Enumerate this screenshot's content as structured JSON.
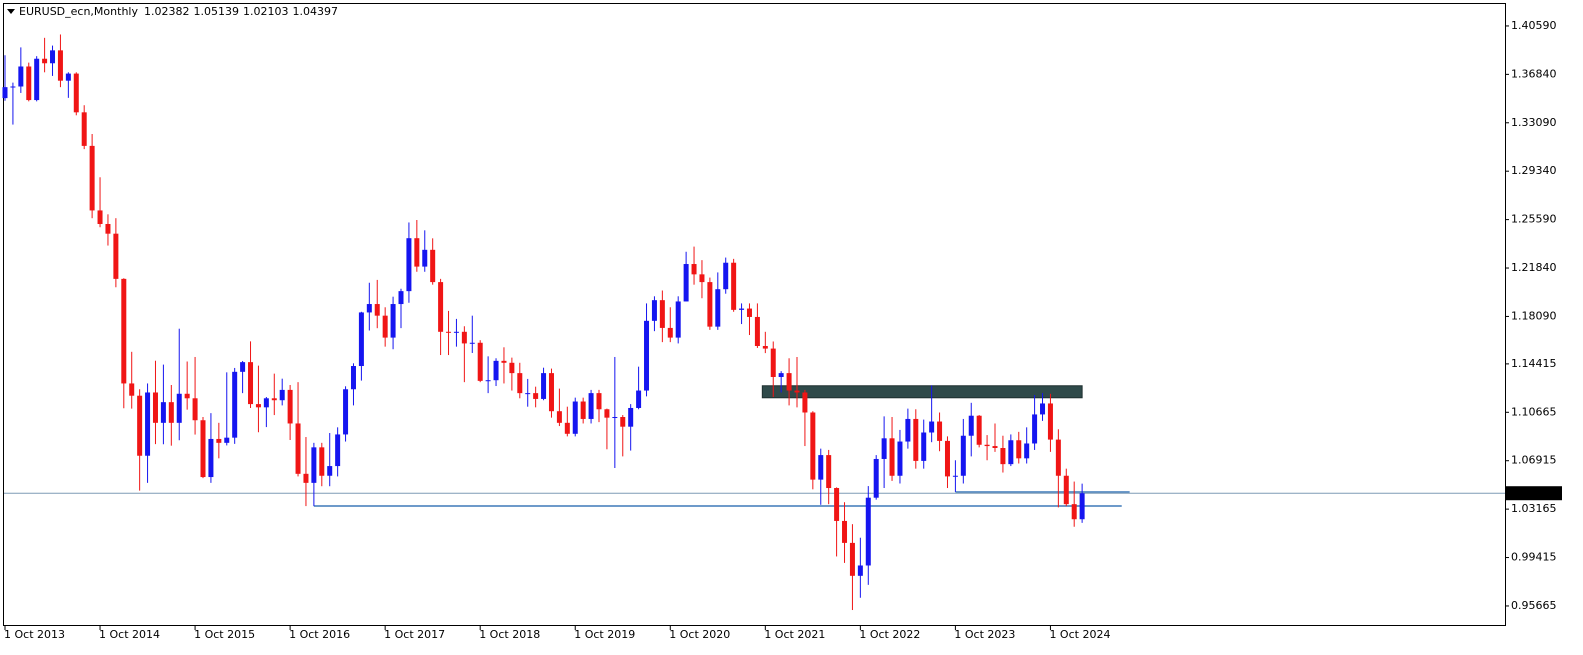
{
  "chart_data": {
    "type": "candlestick",
    "title": "EURUSD_ecn,Monthly",
    "up_color": "#1515f0",
    "down_color": "#f01515",
    "categories": [
      "1 Oct 2013",
      null,
      null,
      null,
      null,
      null,
      null,
      null,
      null,
      null,
      null,
      null,
      "1 Oct 2014",
      null,
      null,
      null,
      null,
      null,
      null,
      null,
      null,
      null,
      null,
      null,
      "1 Oct 2015",
      null,
      null,
      null,
      null,
      null,
      null,
      null,
      null,
      null,
      null,
      null,
      "1 Oct 2016",
      null,
      null,
      null,
      null,
      null,
      null,
      null,
      null,
      null,
      null,
      null,
      "1 Oct 2017",
      null,
      null,
      null,
      null,
      null,
      null,
      null,
      null,
      null,
      null,
      null,
      "1 Oct 2018",
      null,
      null,
      null,
      null,
      null,
      null,
      null,
      null,
      null,
      null,
      null,
      "1 Oct 2019",
      null,
      null,
      null,
      null,
      null,
      null,
      null,
      null,
      null,
      null,
      null,
      "1 Oct 2020",
      null,
      null,
      null,
      null,
      null,
      null,
      null,
      null,
      null,
      null,
      null,
      "1 Oct 2021",
      null,
      null,
      null,
      null,
      null,
      null,
      null,
      null,
      null,
      null,
      null,
      "1 Oct 2022",
      null,
      null,
      null,
      null,
      null,
      null,
      null,
      null,
      null,
      null,
      null,
      "1 Oct 2023",
      null,
      null,
      null,
      null,
      null,
      null,
      null,
      null,
      null,
      null,
      null,
      "1 Oct 2024",
      null,
      null,
      null,
      null
    ],
    "open": [
      1.35,
      1.3585,
      1.359,
      1.3745,
      1.3485,
      1.3805,
      1.377,
      1.387,
      1.3635,
      1.369,
      1.339,
      1.313,
      1.263,
      1.2525,
      1.245,
      1.21,
      1.129,
      1.1195,
      1.073,
      1.122,
      1.0985,
      1.1145,
      1.0985,
      1.121,
      1.1175,
      1.1005,
      1.0565,
      1.086,
      1.083,
      1.087,
      1.138,
      1.1455,
      1.113,
      1.1105,
      1.1175,
      1.116,
      1.124,
      1.098,
      1.059,
      1.052,
      1.0795,
      1.0575,
      1.065,
      1.0895,
      1.1245,
      1.1425,
      1.184,
      1.1905,
      1.1815,
      1.1645,
      1.1905,
      1.2005,
      1.2415,
      1.2195,
      1.2325,
      1.2075,
      1.169,
      1.1685,
      1.169,
      1.16,
      1.1605,
      1.131,
      1.1315,
      1.1465,
      1.145,
      1.137,
      1.1215,
      1.1215,
      1.117,
      1.137,
      1.1075,
      1.0985,
      1.09,
      1.115,
      1.1015,
      1.1215,
      1.109,
      1.1025,
      1.103,
      1.0955,
      1.11,
      1.1235,
      1.1775,
      1.1935,
      1.172,
      1.1645,
      1.1925,
      1.2215,
      1.2135,
      1.2075,
      1.173,
      1.202,
      1.2225,
      1.186,
      1.187,
      1.1805,
      1.158,
      1.156,
      1.134,
      1.137,
      1.1235,
      1.122,
      1.1065,
      1.0545,
      1.0735,
      1.048,
      1.0225,
      1.0055,
      0.98,
      0.988,
      1.0405,
      1.0705,
      1.0865,
      1.0575,
      1.084,
      1.1015,
      1.069,
      1.091,
      1.0995,
      1.0845,
      1.057,
      1.0575,
      1.0885,
      1.104,
      1.0815,
      1.0805,
      1.079,
      1.0665,
      1.085,
      1.071,
      1.0825,
      1.105,
      1.1135,
      1.0855,
      1.0575,
      1.0355,
      1.02382
    ],
    "high": [
      1.3832,
      1.362,
      1.3893,
      1.3775,
      1.3825,
      1.3967,
      1.3907,
      1.3993,
      1.37,
      1.37,
      1.3445,
      1.3222,
      1.2887,
      1.26,
      1.257,
      1.2105,
      1.1535,
      1.1245,
      1.129,
      1.1466,
      1.1436,
      1.1278,
      1.1714,
      1.146,
      1.1495,
      1.103,
      1.106,
      1.0985,
      1.1376,
      1.141,
      1.1464,
      1.1616,
      1.1428,
      1.1185,
      1.1366,
      1.1327,
      1.1278,
      1.13,
      1.0875,
      1.083,
      1.083,
      1.0906,
      1.095,
      1.1268,
      1.1446,
      1.1845,
      1.207,
      1.2092,
      1.188,
      1.1962,
      1.2023,
      1.2537,
      1.2556,
      1.2476,
      1.2414,
      1.21,
      1.1852,
      1.179,
      1.1733,
      1.1815,
      1.1625,
      1.15,
      1.1485,
      1.157,
      1.149,
      1.145,
      1.1325,
      1.1265,
      1.1412,
      1.1405,
      1.125,
      1.111,
      1.118,
      1.118,
      1.124,
      1.124,
      1.1095,
      1.1495,
      1.1045,
      1.113,
      1.142,
      1.191,
      1.1965,
      1.201,
      1.188,
      1.1965,
      1.231,
      1.235,
      1.2245,
      1.211,
      1.215,
      1.2265,
      1.2255,
      1.191,
      1.191,
      1.191,
      1.169,
      1.1615,
      1.1385,
      1.1485,
      1.1495,
      1.124,
      1.1075,
      1.0785,
      1.0775,
      1.0485,
      1.037,
      1.02,
      1.0095,
      1.0495,
      1.0735,
      1.1035,
      1.103,
      1.093,
      1.1095,
      1.109,
      1.101,
      1.1275,
      1.1065,
      1.088,
      1.0695,
      1.1015,
      1.114,
      1.1045,
      1.089,
      1.098,
      1.0885,
      1.0895,
      1.0915,
      1.095,
      1.12,
      1.1215,
      1.121,
      1.0935,
      1.063,
      1.053,
      1.05139
    ],
    "low": [
      1.348,
      1.3295,
      1.354,
      1.3475,
      1.3475,
      1.37,
      1.3672,
      1.3585,
      1.3502,
      1.3367,
      1.3105,
      1.257,
      1.25,
      1.2358,
      1.2035,
      1.1098,
      1.1095,
      1.046,
      1.052,
      1.082,
      1.0819,
      1.0808,
      1.085,
      1.1087,
      1.0894,
      1.0557,
      1.052,
      1.071,
      1.081,
      1.0822,
      1.1215,
      1.11,
      1.0912,
      1.0952,
      1.1045,
      1.112,
      1.0852,
      1.057,
      1.034,
      1.034,
      1.0494,
      1.0494,
      1.057,
      1.084,
      1.112,
      1.1312,
      1.17,
      1.1718,
      1.1575,
      1.1555,
      1.1718,
      1.1915,
      1.2155,
      1.2155,
      1.2055,
      1.151,
      1.151,
      1.1575,
      1.13,
      1.1526,
      1.13,
      1.1215,
      1.127,
      1.129,
      1.1235,
      1.1175,
      1.111,
      1.1105,
      1.116,
      1.1025,
      1.096,
      1.088,
      1.088,
      1.098,
      1.098,
      1.099,
      1.078,
      1.0635,
      1.0725,
      1.077,
      1.109,
      1.119,
      1.1695,
      1.161,
      1.161,
      1.16,
      1.1925,
      1.2055,
      1.195,
      1.1705,
      1.1705,
      1.1985,
      1.1845,
      1.175,
      1.1665,
      1.1565,
      1.1525,
      1.1185,
      1.122,
      1.112,
      1.1105,
      1.0805,
      1.047,
      1.035,
      1.0355,
      0.995,
      0.99,
      0.9535,
      0.963,
      0.973,
      1.039,
      1.048,
      1.0535,
      1.0515,
      1.0785,
      1.063,
      1.063,
      1.0835,
      1.0765,
      1.048,
      1.045,
      1.0515,
      1.0725,
      1.0795,
      1.0695,
      1.076,
      1.06,
      1.065,
      1.067,
      1.067,
      1.0775,
      1.1,
      1.076,
      1.033,
      1.034,
      1.018,
      1.02103
    ],
    "close": [
      1.3585,
      1.359,
      1.3745,
      1.3485,
      1.3805,
      1.377,
      1.387,
      1.3635,
      1.369,
      1.339,
      1.313,
      1.263,
      1.2525,
      1.245,
      1.21,
      1.129,
      1.1195,
      1.073,
      1.122,
      1.0985,
      1.1145,
      1.0985,
      1.121,
      1.1175,
      1.1005,
      1.0565,
      1.086,
      1.083,
      1.087,
      1.138,
      1.1455,
      1.113,
      1.1105,
      1.1175,
      1.116,
      1.124,
      1.098,
      1.059,
      1.052,
      1.0795,
      1.0575,
      1.065,
      1.0895,
      1.1245,
      1.1425,
      1.184,
      1.1905,
      1.1815,
      1.1645,
      1.1905,
      1.2005,
      1.2415,
      1.2195,
      1.2325,
      1.2075,
      1.169,
      1.1685,
      1.169,
      1.16,
      1.1605,
      1.131,
      1.1315,
      1.1465,
      1.145,
      1.137,
      1.1215,
      1.1215,
      1.117,
      1.137,
      1.1075,
      1.0985,
      1.09,
      1.115,
      1.1015,
      1.1215,
      1.109,
      1.1025,
      1.103,
      1.0955,
      1.11,
      1.1235,
      1.1775,
      1.1935,
      1.172,
      1.1645,
      1.1925,
      1.2215,
      1.2135,
      1.2075,
      1.173,
      1.202,
      1.2225,
      1.186,
      1.187,
      1.1805,
      1.158,
      1.156,
      1.134,
      1.137,
      1.1235,
      1.122,
      1.1065,
      1.0545,
      1.0735,
      1.048,
      1.0225,
      1.0055,
      0.98,
      0.988,
      1.0405,
      1.0705,
      1.0865,
      1.0575,
      1.084,
      1.1015,
      1.069,
      1.091,
      1.0995,
      1.0845,
      1.057,
      1.0575,
      1.0885,
      1.104,
      1.0815,
      1.0805,
      1.079,
      1.0665,
      1.085,
      1.071,
      1.0825,
      1.105,
      1.1135,
      1.0855,
      1.0575,
      1.0355,
      1.02382,
      1.04397
    ],
    "ylim": [
      0.9419,
      1.426
    ],
    "yticks": [
      {
        "value": 1.4059,
        "label": "1.40590"
      },
      {
        "value": 1.3684,
        "label": "1.36840"
      },
      {
        "value": 1.3309,
        "label": "1.33090"
      },
      {
        "value": 1.2934,
        "label": "1.29340"
      },
      {
        "value": 1.2559,
        "label": "1.25590"
      },
      {
        "value": 1.2184,
        "label": "1.21840"
      },
      {
        "value": 1.1809,
        "label": "1.18090"
      },
      {
        "value": 1.14415,
        "label": "1.14415"
      },
      {
        "value": 1.10665,
        "label": "1.10665"
      },
      {
        "value": 1.06915,
        "label": "1.06915"
      },
      {
        "value": 1.03165,
        "label": "1.03165"
      },
      {
        "value": 0.99415,
        "label": "0.99415"
      },
      {
        "value": 0.95665,
        "label": "0.95665"
      }
    ],
    "zones": [
      {
        "low": 1.1179,
        "high": 1.1272,
        "from": 96,
        "to": 136,
        "color": "#2f4a4a"
      }
    ],
    "lines": [
      {
        "value": 1.0341,
        "from": 39,
        "to": 141,
        "color": "#3d78b8"
      },
      {
        "value": 1.0449,
        "from": 120,
        "to": 142,
        "color": "#3d78b8"
      }
    ],
    "price_line_color": "#7f9bb5"
  }
}
